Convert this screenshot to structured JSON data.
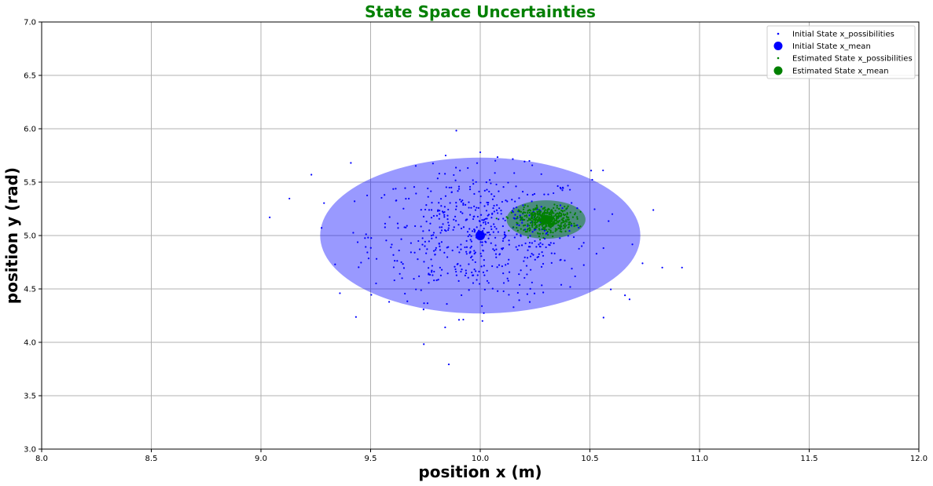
{
  "chart_data": {
    "type": "scatter",
    "title": "State Space Uncertainties",
    "title_color": "#008000",
    "xlabel": "position x (m)",
    "ylabel": "position y (rad)",
    "xlim": [
      8.0,
      12.0
    ],
    "ylim": [
      3.0,
      7.0
    ],
    "xticks": [
      "8.0",
      "8.5",
      "9.0",
      "9.5",
      "10.0",
      "10.5",
      "11.0",
      "11.5",
      "12.0"
    ],
    "yticks": [
      "3.0",
      "3.5",
      "4.0",
      "4.5",
      "5.0",
      "5.5",
      "6.0",
      "6.5",
      "7.0"
    ],
    "grid": true,
    "legend_position": "top-right",
    "series": [
      {
        "name": "Initial State x_possibilities",
        "kind": "points",
        "color": "#0000ff",
        "points_summary": {
          "count": 600,
          "mean": [
            10.0,
            5.0
          ],
          "std": [
            0.25,
            0.3
          ]
        },
        "notable_points": [
          [
            9.04,
            5.17
          ],
          [
            9.23,
            5.57
          ],
          [
            9.41,
            5.68
          ],
          [
            10.0,
            5.78
          ],
          [
            10.56,
            5.61
          ],
          [
            10.74,
            4.74
          ],
          [
            10.83,
            4.7
          ],
          [
            10.92,
            4.7
          ],
          [
            9.84,
            4.14
          ],
          [
            10.01,
            4.2
          ],
          [
            10.66,
            4.44
          ],
          [
            9.36,
            4.46
          ]
        ]
      },
      {
        "name": "Initial State x_mean",
        "kind": "mean",
        "color": "#0000ff",
        "point": [
          10.0,
          5.0
        ]
      },
      {
        "name": "Estimated State x_possibilities",
        "kind": "points",
        "color": "#008000",
        "points_summary": {
          "count": 500,
          "mean": [
            10.3,
            5.15
          ],
          "std": [
            0.06,
            0.06
          ]
        }
      },
      {
        "name": "Estimated State x_mean",
        "kind": "mean",
        "color": "#008000",
        "point": [
          10.3,
          5.15
        ]
      }
    ],
    "ellipses": [
      {
        "center": [
          10.0,
          5.0
        ],
        "semi_axes": [
          0.73,
          0.73
        ],
        "fill": "#0000ff",
        "opacity": 0.4
      },
      {
        "center": [
          10.3,
          5.15
        ],
        "semi_axes": [
          0.18,
          0.18
        ],
        "fill": "#008000",
        "opacity": 0.5
      }
    ]
  }
}
